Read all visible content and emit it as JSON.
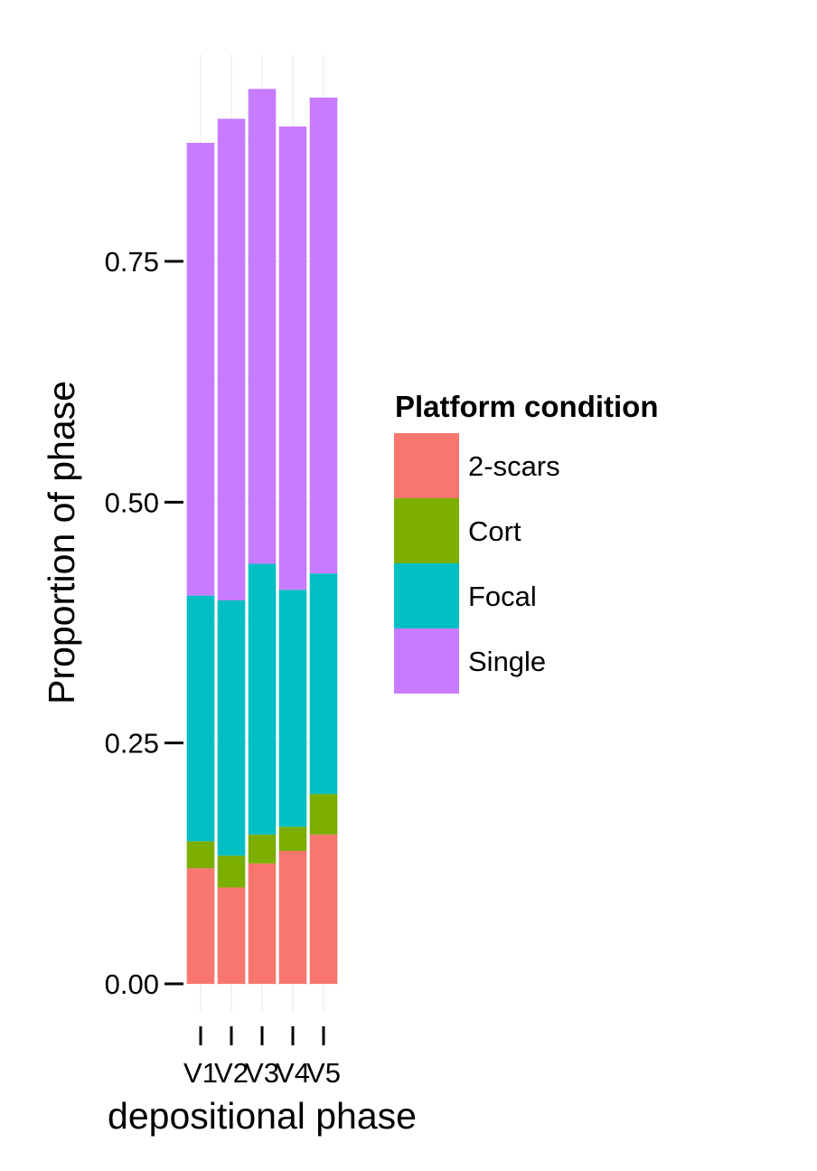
{
  "chart_data": {
    "type": "bar",
    "stacked": true,
    "categories": [
      "V1",
      "V2",
      "V3",
      "V4",
      "V5"
    ],
    "series": [
      {
        "name": "2-scars",
        "color": "#F8766D",
        "values": [
          0.12,
          0.1,
          0.125,
          0.138,
          0.155
        ]
      },
      {
        "name": "Cort",
        "color": "#7CAE00",
        "values": [
          0.028,
          0.033,
          0.03,
          0.025,
          0.042
        ]
      },
      {
        "name": "Focal",
        "color": "#00BFC4",
        "values": [
          0.255,
          0.265,
          0.281,
          0.246,
          0.229
        ]
      },
      {
        "name": "Single",
        "color": "#C77CFF",
        "values": [
          0.47,
          0.5,
          0.493,
          0.481,
          0.494
        ]
      }
    ],
    "xlabel": "depositional phase",
    "ylabel": "Proportion of phase",
    "yticks": [
      "0.00",
      "0.25",
      "0.50",
      "0.75"
    ],
    "ylim": [
      0,
      0.93
    ],
    "legend_title": "Platform condition",
    "legend_position": "right",
    "grid": true
  }
}
